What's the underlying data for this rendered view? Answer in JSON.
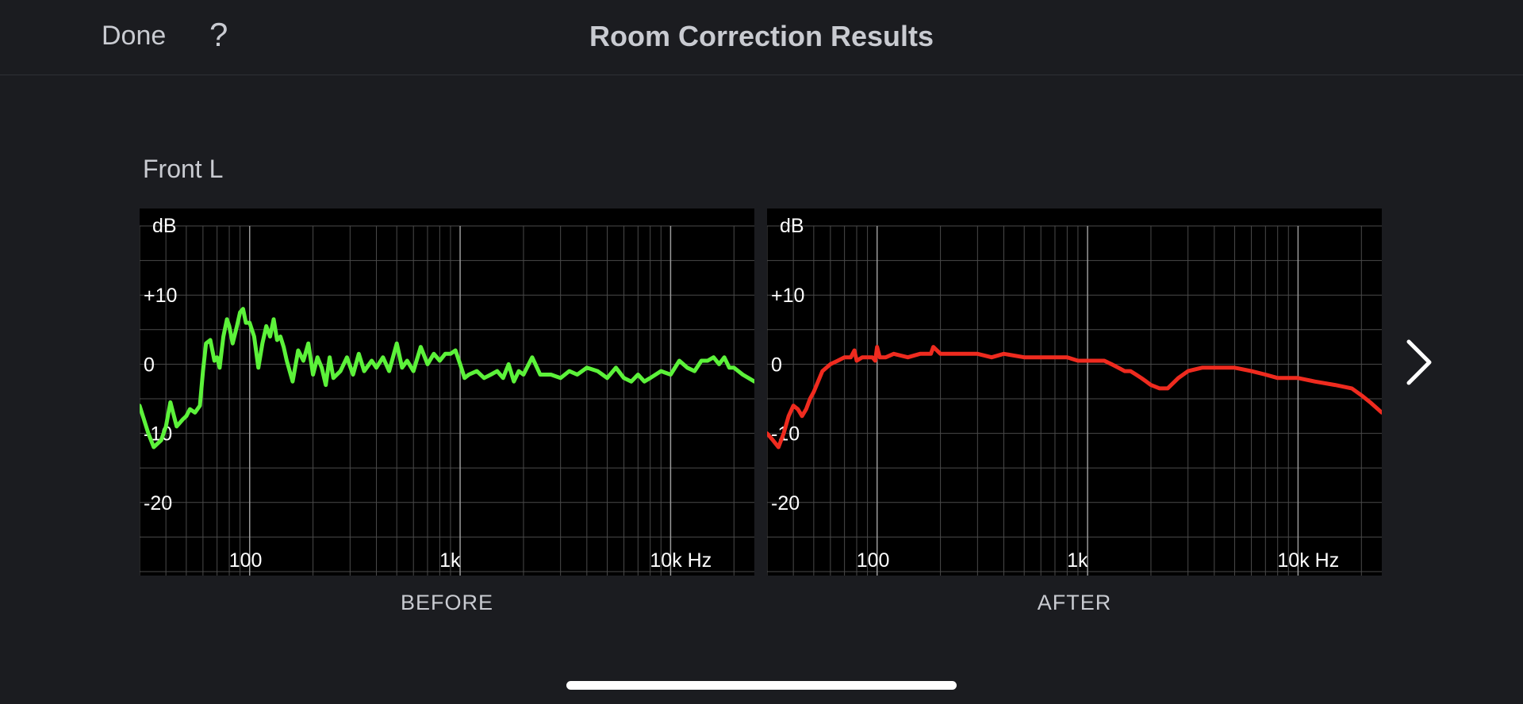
{
  "header": {
    "done_label": "Done",
    "help_label": "?",
    "title": "Room Correction Results"
  },
  "channel": "Front L",
  "colors": {
    "background": "#1b1c20",
    "before_line": "#5cf23a",
    "after_line": "#ef2b1f",
    "grid": "#4a4a4a"
  },
  "icons": {
    "next": "chevron-right-icon"
  },
  "chart_data": [
    {
      "type": "line",
      "caption": "BEFORE",
      "ylabel": "dB",
      "xscale": "log",
      "xlim": [
        30,
        25000
      ],
      "ylim": [
        -30,
        20
      ],
      "y_ticks": [
        10,
        0,
        -10,
        -20
      ],
      "y_tick_labels": [
        "+10",
        "0",
        "-10",
        "-20"
      ],
      "x_ticks": [
        100,
        1000,
        10000
      ],
      "x_tick_labels": [
        "100",
        "1k",
        "10k Hz"
      ],
      "grid": true,
      "series": [
        {
          "color": "#5cf23a",
          "x": [
            30,
            33,
            35,
            38,
            40,
            42,
            45,
            48,
            50,
            52,
            55,
            58,
            60,
            62,
            65,
            68,
            70,
            72,
            75,
            78,
            80,
            83,
            87,
            90,
            93,
            96,
            100,
            105,
            110,
            115,
            120,
            125,
            130,
            135,
            140,
            145,
            150,
            160,
            170,
            180,
            190,
            200,
            210,
            220,
            230,
            240,
            250,
            270,
            290,
            310,
            330,
            350,
            380,
            400,
            430,
            460,
            500,
            530,
            560,
            600,
            650,
            700,
            750,
            800,
            850,
            900,
            950,
            1000,
            1050,
            1100,
            1200,
            1300,
            1400,
            1500,
            1600,
            1700,
            1800,
            1900,
            2000,
            2200,
            2400,
            2700,
            3000,
            3300,
            3600,
            4000,
            4500,
            5000,
            5500,
            6000,
            6500,
            7000,
            7500,
            8000,
            9000,
            10000,
            11000,
            12000,
            13000,
            14000,
            15000,
            16000,
            17000,
            18000,
            19000,
            20000,
            22000,
            25000
          ],
          "y": [
            -6,
            -10,
            -12,
            -11,
            -9,
            -5.5,
            -9,
            -8,
            -7.5,
            -6.5,
            -7,
            -6,
            -1,
            3,
            3.5,
            0.5,
            1,
            -0.5,
            4,
            6.5,
            5.5,
            3,
            5.5,
            7.5,
            8,
            6,
            6,
            4,
            -0.5,
            3,
            5.5,
            4,
            6.5,
            3.5,
            4,
            2.5,
            0.5,
            -2.5,
            2,
            0.5,
            3,
            -1.5,
            1,
            -0.5,
            -3,
            1,
            -2,
            -1,
            1,
            -1.5,
            1.5,
            -1,
            0.5,
            -0.5,
            1,
            -1,
            3,
            -0.5,
            0.5,
            -1,
            2.5,
            0,
            1.5,
            0.5,
            1.5,
            1.5,
            2,
            0,
            -2,
            -1.5,
            -1,
            -2,
            -1.5,
            -1,
            -2,
            0,
            -2.5,
            -1,
            -1.5,
            1,
            -1.5,
            -1.5,
            -2,
            -1,
            -1.5,
            -0.5,
            -1,
            -2,
            -0.5,
            -2,
            -2.5,
            -1.5,
            -2.5,
            -2,
            -1,
            -1.5,
            0.5,
            -0.5,
            -1,
            0.5,
            0.5,
            1,
            0,
            1,
            -0.5,
            -0.5,
            -1.5,
            -2.5
          ]
        }
      ]
    },
    {
      "type": "line",
      "caption": "AFTER",
      "ylabel": "dB",
      "xscale": "log",
      "xlim": [
        30,
        25000
      ],
      "ylim": [
        -30,
        20
      ],
      "y_ticks": [
        10,
        0,
        -10,
        -20
      ],
      "y_tick_labels": [
        "+10",
        "0",
        "-10",
        "-20"
      ],
      "x_ticks": [
        100,
        1000,
        10000
      ],
      "x_tick_labels": [
        "100",
        "1k",
        "10k Hz"
      ],
      "grid": true,
      "series": [
        {
          "color": "#ef2b1f",
          "x": [
            30,
            32,
            34,
            36,
            38,
            40,
            42,
            44,
            46,
            48,
            50,
            55,
            60,
            65,
            70,
            75,
            78,
            80,
            85,
            90,
            95,
            98,
            100,
            103,
            110,
            120,
            140,
            160,
            180,
            185,
            200,
            250,
            300,
            350,
            400,
            500,
            600,
            700,
            800,
            900,
            1000,
            1100,
            1200,
            1300,
            1400,
            1500,
            1600,
            1700,
            1800,
            1900,
            2000,
            2200,
            2400,
            2700,
            3000,
            3500,
            4000,
            5000,
            6000,
            7000,
            8000,
            10000,
            12000,
            15000,
            18000,
            20000,
            22000,
            25000
          ],
          "y": [
            -10,
            -11,
            -12,
            -10,
            -7.5,
            -6,
            -6.5,
            -7.5,
            -6.5,
            -5,
            -4,
            -1,
            0,
            0.5,
            1,
            1,
            2,
            0.5,
            1,
            1,
            1,
            0.5,
            2.5,
            1,
            1,
            1.5,
            1,
            1.5,
            1.5,
            2.5,
            1.5,
            1.5,
            1.5,
            1,
            1.5,
            1,
            1,
            1,
            1,
            0.5,
            0.5,
            0.5,
            0.5,
            0,
            -0.5,
            -1,
            -1,
            -1.5,
            -2,
            -2.5,
            -3,
            -3.5,
            -3.5,
            -2,
            -1,
            -0.5,
            -0.5,
            -0.5,
            -1,
            -1.5,
            -2,
            -2,
            -2.5,
            -3,
            -3.5,
            -4.5,
            -5.5,
            -7
          ]
        }
      ]
    }
  ]
}
